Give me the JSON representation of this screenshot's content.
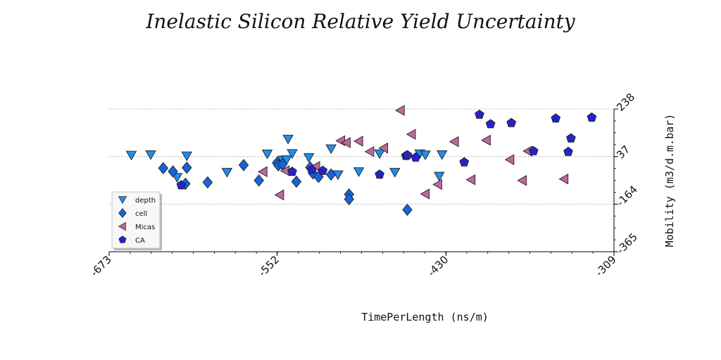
{
  "chart_data": {
    "type": "scatter",
    "title": "Inelastic Silicon Relative Yield Uncertainty",
    "xlabel": "TimePerLength (ns/m)",
    "ylabel": "Mobility (m3/d.m.bar)",
    "xlim": [
      -673,
      -309
    ],
    "ylim": [
      -365,
      238
    ],
    "xticks": [
      "-673",
      "-552",
      "-430",
      "-309"
    ],
    "yticks": [
      "-365",
      "-164",
      "37",
      "238"
    ],
    "y_axis_side": "right",
    "grid": "horizontal dotted",
    "legend_position": "lower-left",
    "series": [
      {
        "name": "depth",
        "marker": "triangle-down",
        "color": "#1f8ded",
        "points": [
          [
            -657,
            43
          ],
          [
            -643,
            45
          ],
          [
            -617,
            40
          ],
          [
            -624,
            -51
          ],
          [
            -588,
            -29
          ],
          [
            -559,
            48
          ],
          [
            -548,
            22
          ],
          [
            -545,
            24
          ],
          [
            -541,
            50
          ],
          [
            -544,
            111
          ],
          [
            -529,
            33
          ],
          [
            -513,
            70
          ],
          [
            -508,
            -40
          ],
          [
            -493,
            -27
          ],
          [
            -478,
            49
          ],
          [
            -467,
            -29
          ],
          [
            -449,
            49
          ],
          [
            -445,
            44
          ],
          [
            -435,
            -46
          ],
          [
            -433,
            45
          ]
        ]
      },
      {
        "name": "cell",
        "marker": "diamond",
        "color": "#1565d8",
        "points": [
          [
            -634,
            -12
          ],
          [
            -627,
            -26
          ],
          [
            -618,
            -78
          ],
          [
            -617,
            -10
          ],
          [
            -602,
            -72
          ],
          [
            -576,
            1
          ],
          [
            -565,
            -64
          ],
          [
            -552,
            10
          ],
          [
            -551,
            0
          ],
          [
            -548,
            4
          ],
          [
            -538,
            -69
          ],
          [
            -528,
            -9
          ],
          [
            -526,
            -34
          ],
          [
            -522,
            -49
          ],
          [
            -513,
            -39
          ],
          [
            -500,
            -123
          ],
          [
            -500,
            -143
          ],
          [
            -458,
            -188
          ]
        ]
      },
      {
        "name": "Micas",
        "marker": "triangle-left",
        "color": "#c0679d",
        "points": [
          [
            -562,
            -27
          ],
          [
            -550,
            -125
          ],
          [
            -546,
            -23
          ],
          [
            -524,
            -5
          ],
          [
            -506,
            104
          ],
          [
            -502,
            96
          ],
          [
            -493,
            102
          ],
          [
            -485,
            58
          ],
          [
            -475,
            73
          ],
          [
            -463,
            232
          ],
          [
            -455,
            131
          ],
          [
            -445,
            -121
          ],
          [
            -436,
            -81
          ],
          [
            -424,
            100
          ],
          [
            -412,
            -61
          ],
          [
            -384,
            24
          ],
          [
            -371,
            60
          ],
          [
            -375,
            -64
          ],
          [
            -401,
            106
          ],
          [
            -345,
            -58
          ]
        ]
      },
      {
        "name": "CA",
        "marker": "pentagon",
        "color": "#2424c8",
        "points": [
          [
            -621,
            -84
          ],
          [
            -541,
            -27
          ],
          [
            -527,
            -19
          ],
          [
            -519,
            -23
          ],
          [
            -478,
            -39
          ],
          [
            -459,
            40
          ],
          [
            -458,
            43
          ],
          [
            -452,
            33
          ],
          [
            -417,
            13
          ],
          [
            -406,
            214
          ],
          [
            -398,
            174
          ],
          [
            -383,
            179
          ],
          [
            -367,
            60
          ],
          [
            -351,
            198
          ],
          [
            -340,
            114
          ],
          [
            -325,
            202
          ],
          [
            -342,
            57
          ]
        ]
      }
    ]
  }
}
